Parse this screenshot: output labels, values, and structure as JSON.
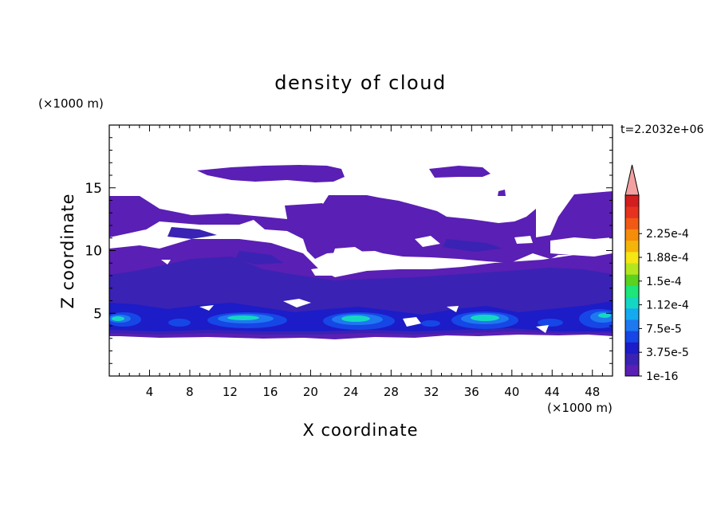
{
  "chart_data": {
    "type": "heatmap",
    "title": "density of cloud",
    "xlabel": "X coordinate",
    "ylabel": "Z coordinate",
    "x_unit": "(×1000 m)",
    "y_unit": "(×1000 m)",
    "time_label": "t=2.2032e+06",
    "xlim": [
      0,
      50
    ],
    "ylim": [
      0,
      20
    ],
    "x_ticks": [
      4,
      8,
      12,
      16,
      20,
      24,
      28,
      32,
      36,
      40,
      44,
      48
    ],
    "y_ticks": [
      5,
      10,
      15
    ],
    "colorbar": {
      "labels": [
        "1e-16",
        "3.75e-5",
        "7.5e-5",
        "1.12e-4",
        "1.5e-4",
        "1.88e-4",
        "2.25e-4"
      ],
      "colors": [
        "#5a1fb4",
        "#3a22b4",
        "#1c1cc8",
        "#1646e6",
        "#1e78f0",
        "#14aaf0",
        "#14d7c3",
        "#1ee678",
        "#5ad21e",
        "#b4e61e",
        "#f5e614",
        "#f5b40a",
        "#f58c0a",
        "#f05a14",
        "#e6321e",
        "#d21e1e"
      ],
      "extend_color": "#f2a0a0"
    },
    "cloud_layers": [
      {
        "level": "low",
        "z_range": [
          3.4,
          14.6
        ],
        "color": "#5a1fb4"
      },
      {
        "level": "mid",
        "z_range": [
          3.6,
          9.0
        ],
        "color": "#3a22b4"
      },
      {
        "level": "peak",
        "x_centers": [
          1,
          14,
          25,
          37,
          49
        ],
        "z": 4.7,
        "max": "1.12e-4"
      }
    ]
  }
}
